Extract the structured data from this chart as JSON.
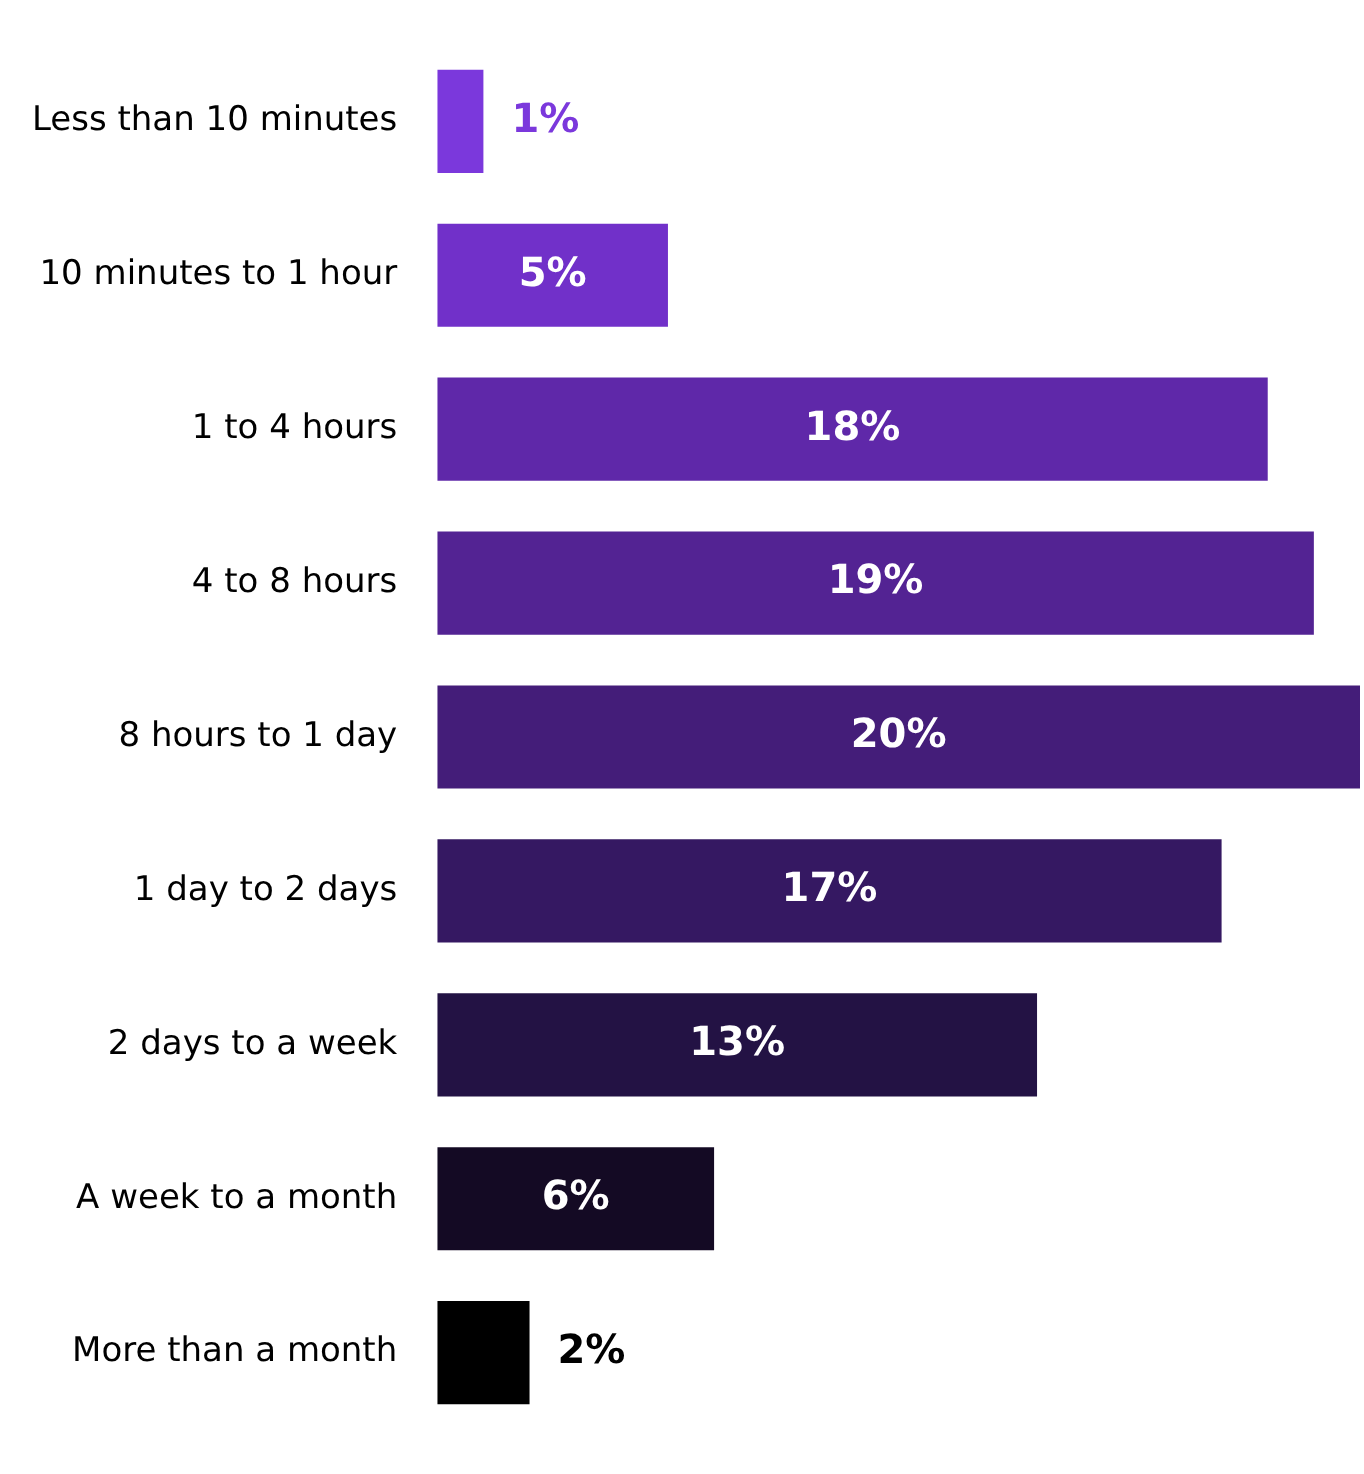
{
  "chart_data": {
    "type": "bar",
    "orientation": "horizontal",
    "categories": [
      "Less than 10 minutes",
      "10 minutes to 1 hour",
      "1 to 4 hours",
      "4 to 8 hours",
      "8 hours to 1 day",
      "1 day to 2 days",
      "2 days to a week",
      "A week to a month",
      "More than a month"
    ],
    "values": [
      1,
      5,
      18,
      19,
      20,
      17,
      13,
      6,
      2
    ],
    "value_labels": [
      "1%",
      "5%",
      "18%",
      "19%",
      "20%",
      "17%",
      "13%",
      "6%",
      "2%"
    ],
    "colors": [
      "#7b38dc",
      "#7130c9",
      "#5f28a9",
      "#532393",
      "#441d79",
      "#351862",
      "#231244",
      "#140a24",
      "#000000"
    ],
    "xlim": [
      0,
      20
    ],
    "tick_labels": "y",
    "legend": false
  }
}
